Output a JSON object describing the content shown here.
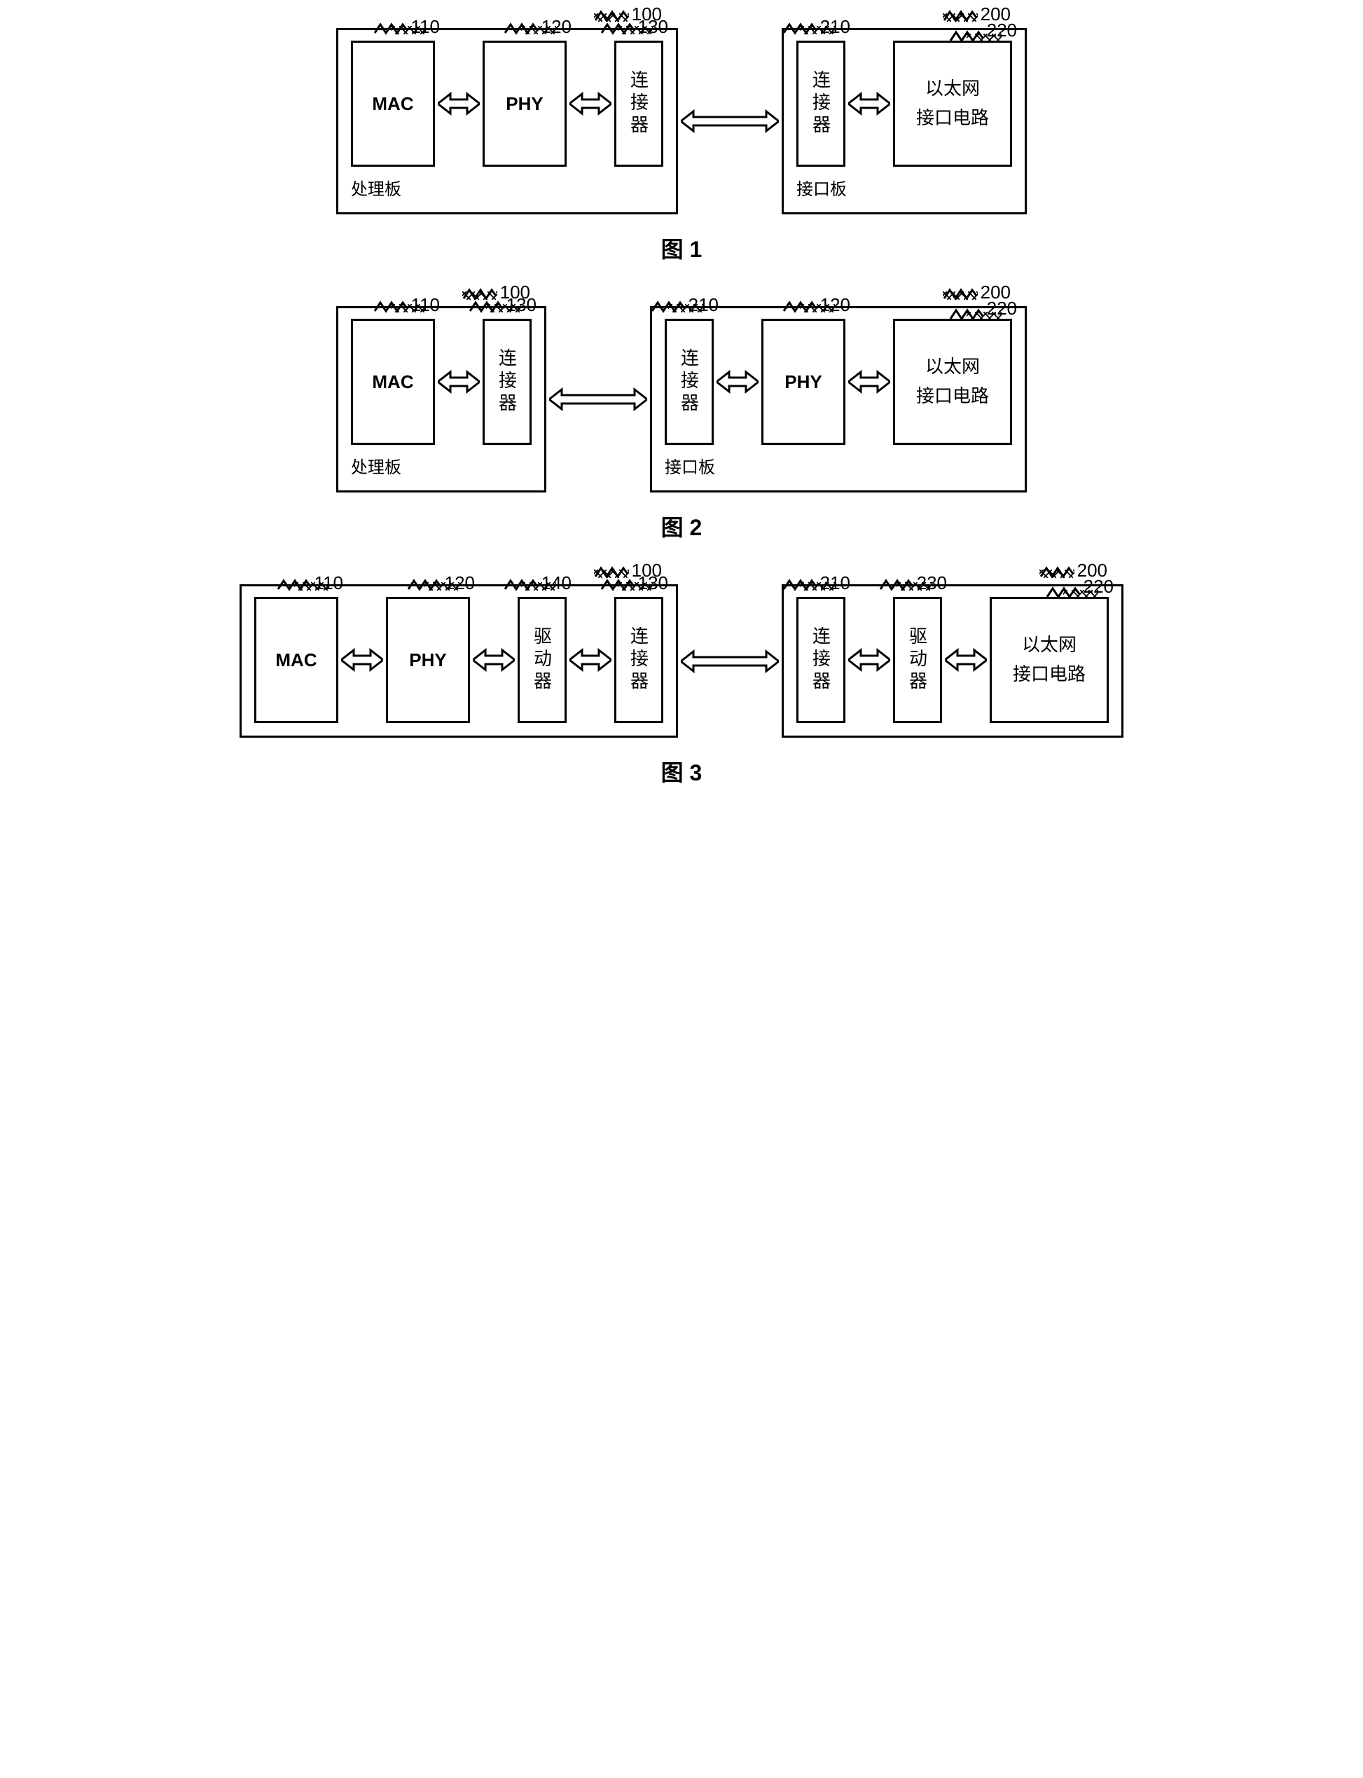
{
  "colors": {
    "stroke": "#000000",
    "bg": "#ffffff",
    "arrow_fill": "#ffffff"
  },
  "stroke_width": 3,
  "fonts": {
    "label_size": 26,
    "caption_size": 32,
    "board_label_size": 24
  },
  "layout": {
    "arrow_short_len": 60,
    "arrow_long_len": 140,
    "arrow_head_w": 18,
    "arrow_head_h": 28,
    "arrow_body_h": 12
  },
  "refs": {
    "board_proc": "100",
    "board_if": "200",
    "mac": "110",
    "phy": "120",
    "conn_left": "130",
    "drv_left": "140",
    "conn_right": "210",
    "eth": "220",
    "drv_right": "230"
  },
  "labels": {
    "mac": "MAC",
    "phy": "PHY",
    "connector": "连接器",
    "driver": "驱动器",
    "ethernet_line1": "以太网",
    "ethernet_line2": "接口电路",
    "board_proc": "处理板",
    "board_if": "接口板"
  },
  "captions": {
    "fig1": "图 1",
    "fig2": "图 2",
    "fig3": "图 3"
  },
  "figures": {
    "fig1": {
      "left": {
        "label": "board_proc",
        "ref": "board_proc",
        "blocks": [
          {
            "type": "med",
            "text": "mac",
            "ref": "mac"
          },
          {
            "arrow": "short"
          },
          {
            "type": "med",
            "text": "phy",
            "ref": "phy"
          },
          {
            "arrow": "short"
          },
          {
            "type": "tall",
            "vtext": "connector",
            "ref": "conn_left"
          }
        ]
      },
      "right": {
        "label": "board_if",
        "ref": "board_if",
        "blocks": [
          {
            "type": "tall",
            "vtext": "connector",
            "ref": "conn_right"
          },
          {
            "arrow": "short"
          },
          {
            "type": "wide",
            "lines": [
              "ethernet_line1",
              "ethernet_line2"
            ],
            "ref": "eth"
          }
        ]
      },
      "mid_arrow": "long"
    },
    "fig2": {
      "left": {
        "label": "board_proc",
        "ref": "board_proc",
        "blocks": [
          {
            "type": "med",
            "text": "mac",
            "ref": "mac"
          },
          {
            "arrow": "short"
          },
          {
            "type": "tall",
            "vtext": "connector",
            "ref": "conn_left"
          }
        ]
      },
      "right": {
        "label": "board_if",
        "ref": "board_if",
        "blocks": [
          {
            "type": "tall",
            "vtext": "connector",
            "ref": "conn_right"
          },
          {
            "arrow": "short"
          },
          {
            "type": "med",
            "text": "phy",
            "ref": "phy"
          },
          {
            "arrow": "short"
          },
          {
            "type": "wide",
            "lines": [
              "ethernet_line1",
              "ethernet_line2"
            ],
            "ref": "eth"
          }
        ]
      },
      "mid_arrow": "long"
    },
    "fig3": {
      "left": {
        "label": null,
        "ref": "board_proc",
        "blocks": [
          {
            "type": "med",
            "text": "mac",
            "ref": "mac"
          },
          {
            "arrow": "short"
          },
          {
            "type": "med",
            "text": "phy",
            "ref": "phy"
          },
          {
            "arrow": "short"
          },
          {
            "type": "tall",
            "vtext": "driver",
            "ref": "drv_left"
          },
          {
            "arrow": "short"
          },
          {
            "type": "tall",
            "vtext": "connector",
            "ref": "conn_left"
          }
        ]
      },
      "right": {
        "label": null,
        "ref": "board_if",
        "blocks": [
          {
            "type": "tall",
            "vtext": "connector",
            "ref": "conn_right"
          },
          {
            "arrow": "short"
          },
          {
            "type": "tall",
            "vtext": "driver",
            "ref": "drv_right"
          },
          {
            "arrow": "short"
          },
          {
            "type": "wide",
            "lines": [
              "ethernet_line1",
              "ethernet_line2"
            ],
            "ref": "eth"
          }
        ]
      },
      "mid_arrow": "long"
    }
  }
}
